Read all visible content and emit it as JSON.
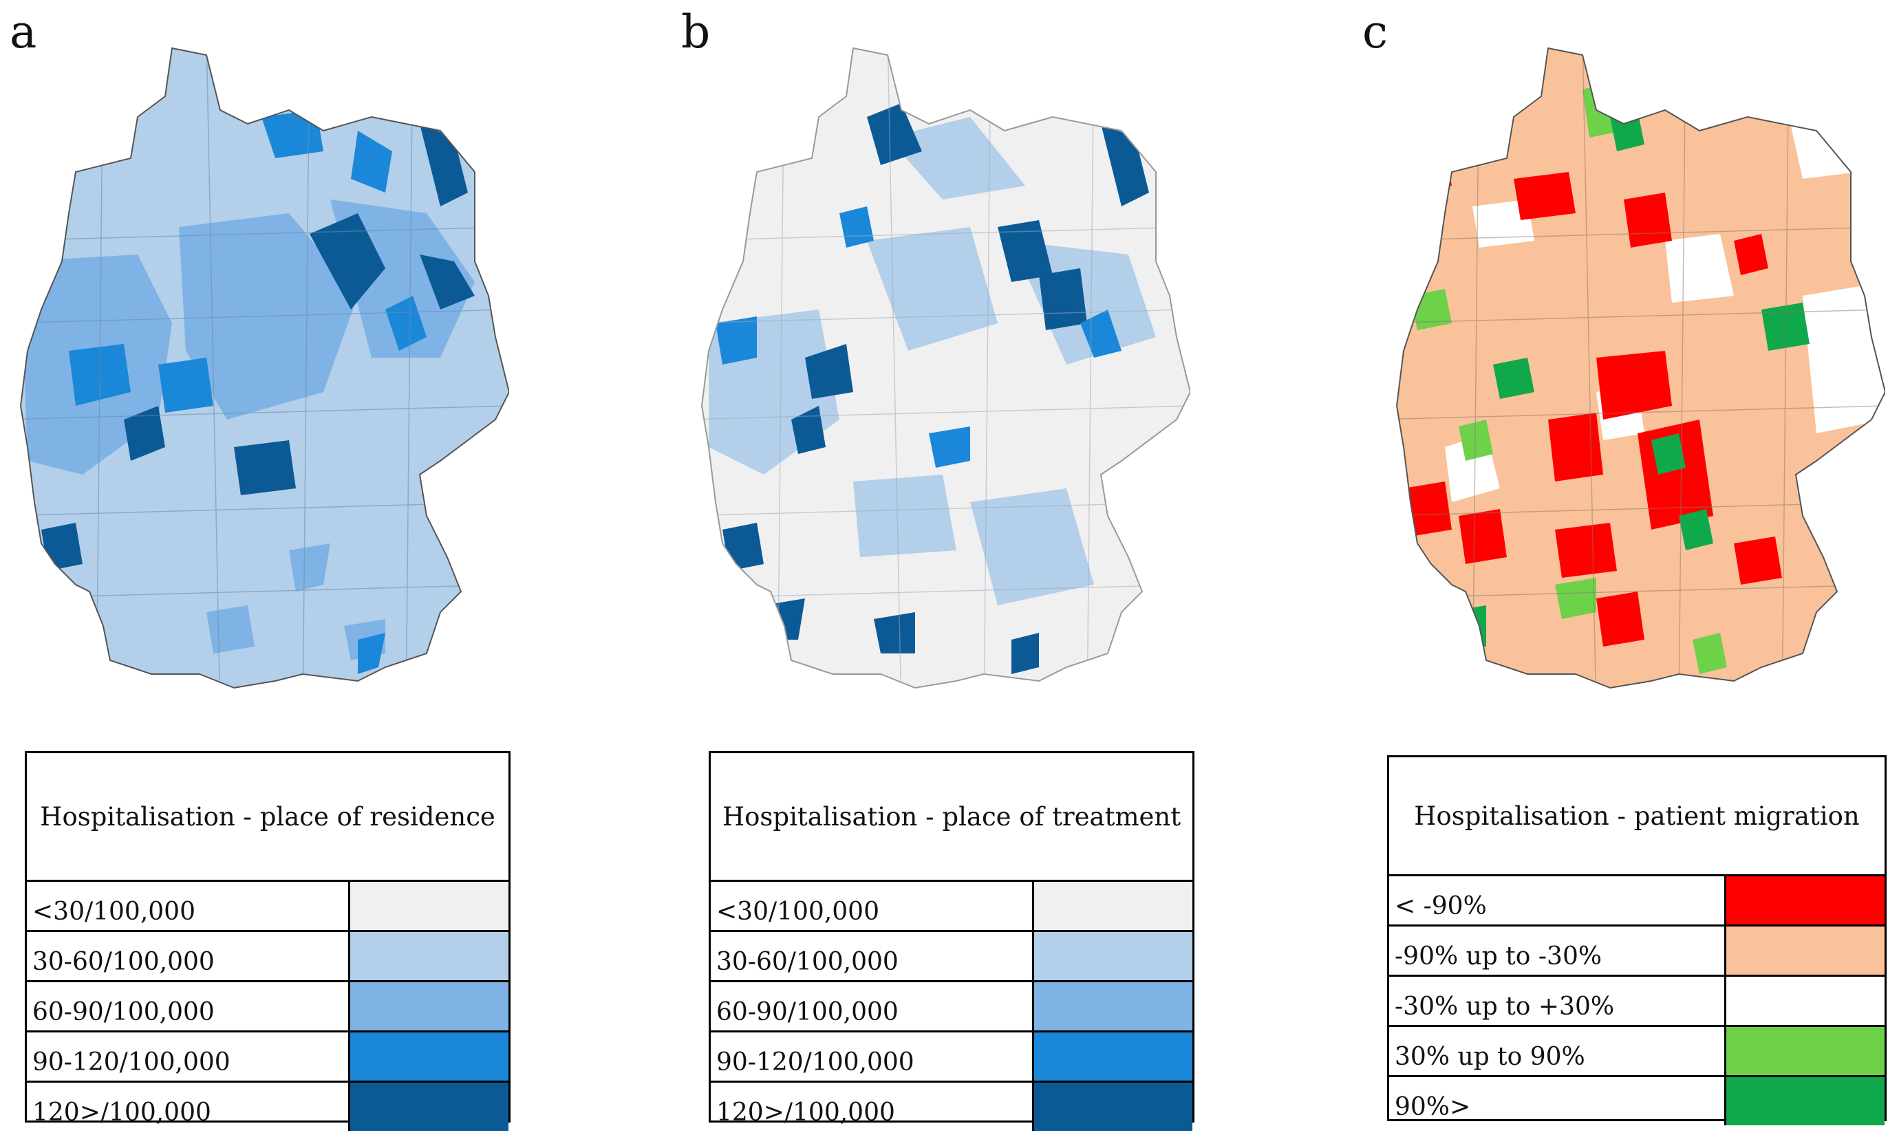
{
  "panels": [
    {
      "label": "a",
      "legend_title": "Hospitalisation - place of residence",
      "legend_items": [
        {
          "label": "<30/100,000",
          "color": "#f0f0f0"
        },
        {
          "label": "30-60/100,000",
          "color": "#b3cfea"
        },
        {
          "label": "60-90/100,000",
          "color": "#7fb3e6"
        },
        {
          "label": "90-120/100,000",
          "color": "#1b87d8"
        },
        {
          "label": "120>/100,000",
          "color": "#0b5a96"
        }
      ]
    },
    {
      "label": "b",
      "legend_title": "Hospitalisation - place of treatment",
      "legend_items": [
        {
          "label": "<30/100,000",
          "color": "#f0f0f0"
        },
        {
          "label": "30-60/100,000",
          "color": "#b3cfea"
        },
        {
          "label": "60-90/100,000",
          "color": "#7fb3e6"
        },
        {
          "label": "90-120/100,000",
          "color": "#1b87d8"
        },
        {
          "label": "120>/100,000",
          "color": "#0b5a96"
        }
      ]
    },
    {
      "label": "c",
      "legend_title": "Hospitalisation - patient migration",
      "legend_items": [
        {
          "label": "< -90%",
          "color": "#ff0000"
        },
        {
          "label": "-90% up to -30%",
          "color": "#f9c29a"
        },
        {
          "label": "-30% up to +30%",
          "color": "#ffffff"
        },
        {
          "label": "30% up to 90%",
          "color": "#6dd14a"
        },
        {
          "label": "90%>",
          "color": "#0fa84a"
        }
      ]
    }
  ]
}
